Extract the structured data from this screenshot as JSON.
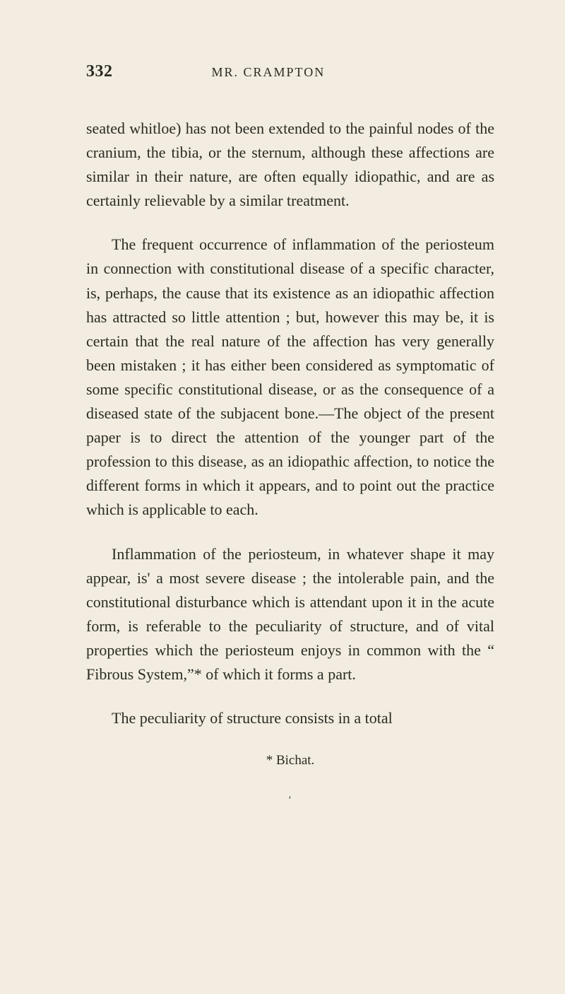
{
  "page_number": "332",
  "running_head": "MR. CRAMPTON",
  "typography": {
    "body_fontsize_pt": 16,
    "header_fontsize_pt": 18,
    "line_height": 1.55,
    "font_family": "Georgia, serif",
    "text_color": "#2a2a24",
    "background_color": "#f2ede0"
  },
  "paragraphs": {
    "p1": "seated whitloe) has not been extended to the pain­ful nodes of the cranium, the tibia, or the sternum, although these affections are similar in their nature, are often equally idiopathic, and are as certainly relievable by a similar treatment.",
    "p2": "The frequent occurrence of inflammation of the periosteum in connection with constitutional disease of a specific character, is, perhaps, the cause that its existence as an idiopathic affection has attracted so little attention ; but, however this may be, it is cer­tain that the real nature of the affection has very generally been mistaken ; it has either been consi­dered as symptomatic of some specific constitutional disease, or as the consequence of a diseased state of the subjacent bone.—The object of the present paper is to direct the attention of the younger part of the profession to this disease, as an idiopathic affection, to notice the different forms in which it appears, and to point out the practice which is applicable to each.",
    "p3": "Inflammation of the periosteum, in whatever shape it may appear, is' a most severe disease ; the intoler­able pain, and the constitutional disturbance which is attendant upon it in the acute form, is referable to the peculiarity of structure, and of vital proper­ties which the periosteum enjoys in common with the “ Fibrous System,”* of which it forms a part.",
    "p4": "The peculiarity of structure consists in a total"
  },
  "footnote": "* Bichat.",
  "signature_mark": "′"
}
